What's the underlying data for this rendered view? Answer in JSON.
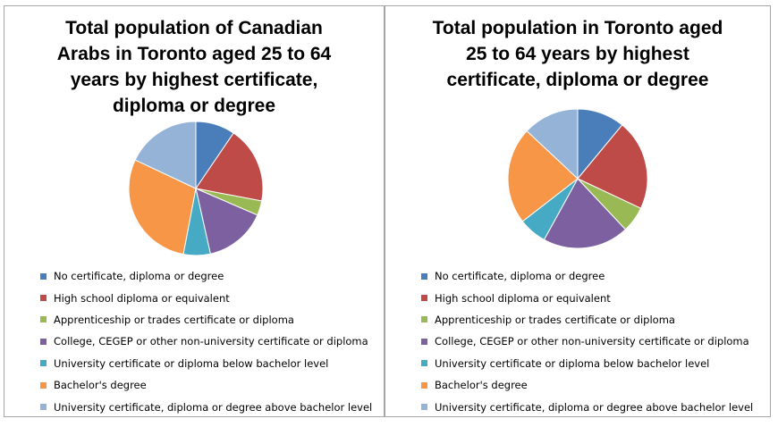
{
  "chart_data": [
    {
      "type": "pie",
      "title": "Total population of Canadian Arabs in Toronto aged 25 to 64 years by highest certificate, diploma or degree",
      "categories": [
        "No certificate, diploma or degree",
        "High school diploma or equivalent",
        "Apprenticeship or trades certificate or diploma",
        "College, CEGEP or other non-university certificate or diploma",
        "University certificate or diploma below bachelor level",
        "Bachelor's degree",
        "University certificate, diploma or degree above bachelor level"
      ],
      "values": [
        9.5,
        18.5,
        3.5,
        15,
        6.5,
        29,
        18
      ],
      "colors": [
        "#4a7ebb",
        "#be4b48",
        "#98b954",
        "#7d60a0",
        "#46aac5",
        "#f79646",
        "#95b3d7"
      ],
      "legend_position": "bottom"
    },
    {
      "type": "pie",
      "title": "Total population in Toronto aged 25 to 64 years by highest certificate, diploma or degree",
      "categories": [
        "No certificate, diploma or degree",
        "High school diploma or equivalent",
        "Apprenticeship or trades certificate or diploma",
        "College, CEGEP or other non-university certificate or diploma",
        "University certificate or diploma below bachelor level",
        "Bachelor's degree",
        "University certificate, diploma or degree above bachelor level"
      ],
      "values": [
        11,
        21,
        6,
        20,
        6.5,
        22.5,
        13
      ],
      "colors": [
        "#4a7ebb",
        "#be4b48",
        "#98b954",
        "#7d60a0",
        "#46aac5",
        "#f79646",
        "#95b3d7"
      ],
      "legend_position": "bottom"
    }
  ]
}
